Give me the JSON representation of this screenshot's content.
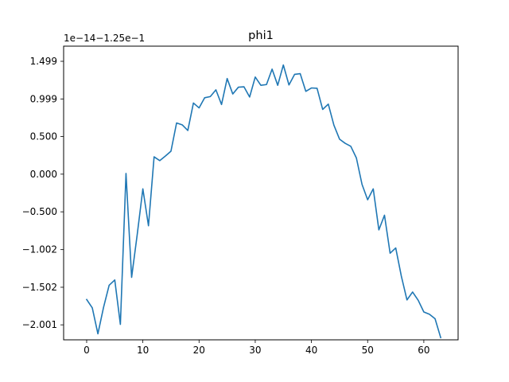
{
  "chart_data": {
    "type": "line",
    "title": "phi1",
    "xlabel": "",
    "ylabel": "",
    "y_offset_label": "1e−14−1.25e−1",
    "xlim": [
      -4.1,
      66.1
    ],
    "ylim": [
      -2.2,
      1.7
    ],
    "grid": false,
    "x_ticks": [
      0,
      10,
      20,
      30,
      40,
      50,
      60
    ],
    "x_tick_labels": [
      "0",
      "10",
      "20",
      "30",
      "40",
      "50",
      "60"
    ],
    "y_ticks": [
      -2.001,
      -1.502,
      -1.002,
      -0.5,
      0.0,
      0.5,
      0.999,
      1.499
    ],
    "y_tick_labels": [
      "−2.001",
      "−1.502",
      "−1.002",
      "−0.500",
      "0.000",
      "0.500",
      "0.999",
      "1.499"
    ],
    "series": [
      {
        "color": "#1f77b4",
        "x": [
          0,
          1,
          2,
          3,
          4,
          5,
          6,
          7,
          8,
          9,
          10,
          11,
          12,
          13,
          14,
          15,
          16,
          17,
          18,
          19,
          20,
          21,
          22,
          23,
          24,
          25,
          26,
          27,
          28,
          29,
          30,
          31,
          32,
          33,
          34,
          35,
          36,
          37,
          38,
          39,
          40,
          41,
          42,
          43,
          44,
          45,
          46,
          47,
          48,
          49,
          50,
          51,
          52,
          53,
          54,
          55,
          56,
          57,
          58,
          59,
          60,
          61,
          62,
          63
        ],
        "y": [
          -1.665,
          -1.775,
          -2.12,
          -1.77,
          -1.475,
          -1.405,
          -1.995,
          0.01,
          -1.37,
          -0.8,
          -0.195,
          -0.685,
          0.23,
          0.18,
          0.24,
          0.305,
          0.68,
          0.655,
          0.58,
          0.945,
          0.88,
          1.015,
          1.03,
          1.12,
          0.925,
          1.27,
          1.065,
          1.155,
          1.16,
          1.025,
          1.29,
          1.18,
          1.19,
          1.395,
          1.18,
          1.45,
          1.185,
          1.325,
          1.335,
          1.1,
          1.145,
          1.14,
          0.86,
          0.93,
          0.65,
          0.465,
          0.41,
          0.37,
          0.215,
          -0.135,
          -0.34,
          -0.195,
          -0.74,
          -0.545,
          -1.05,
          -0.98,
          -1.355,
          -1.67,
          -1.565,
          -1.675,
          -1.83,
          -1.86,
          -1.92,
          -2.17
        ]
      }
    ]
  }
}
